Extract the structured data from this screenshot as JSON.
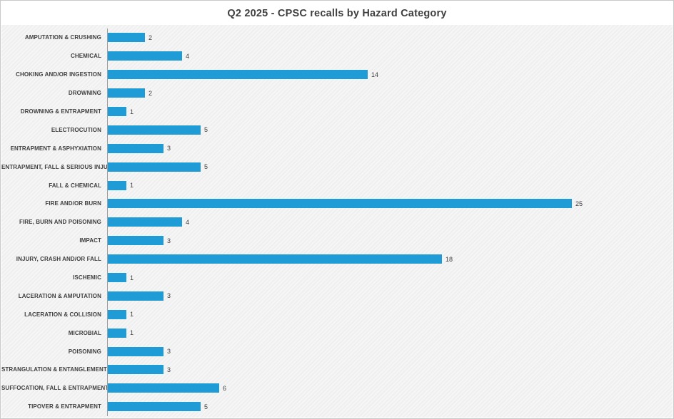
{
  "title": "Q2 2025 - CPSC recalls by Hazard Category",
  "colors": {
    "bar": "#1f9cd6",
    "title_text": "#3f3f3f",
    "axis_line": "#9e9e9e",
    "plot_background": "#f2f2f2"
  },
  "chart_data": {
    "type": "bar",
    "orientation": "horizontal",
    "title": "Q2 2025 - CPSC recalls by Hazard Category",
    "xlabel": "",
    "ylabel": "",
    "xlim": [
      0,
      26
    ],
    "grid": false,
    "legend": false,
    "data_labels": true,
    "categories": [
      "AMPUTATION & CRUSHING",
      "CHEMICAL",
      "CHOKING AND/OR INGESTION",
      "DROWNING",
      "DROWNING & ENTRAPMENT",
      "ELECTROCUTION",
      "ENTRAPMENT & ASPHYXIATION",
      "ENTRAPMENT, FALL & SERIOUS INJURY",
      "FALL & CHEMICAL",
      "FIRE AND/OR BURN",
      "FIRE, BURN AND POISONING",
      "IMPACT",
      "INJURY, CRASH AND/OR FALL",
      "ISCHEMIC",
      "LACERATION & AMPUTATION",
      "LACERATION & COLLISION",
      "MICROBIAL",
      "POISONING",
      "STRANGULATION & ENTANGLEMENT",
      "SUFFOCATION, FALL & ENTRAPMENT",
      "TIPOVER & ENTRAPMENT"
    ],
    "values": [
      2,
      4,
      14,
      2,
      1,
      5,
      3,
      5,
      1,
      25,
      4,
      3,
      18,
      1,
      3,
      1,
      1,
      3,
      3,
      6,
      5
    ]
  }
}
